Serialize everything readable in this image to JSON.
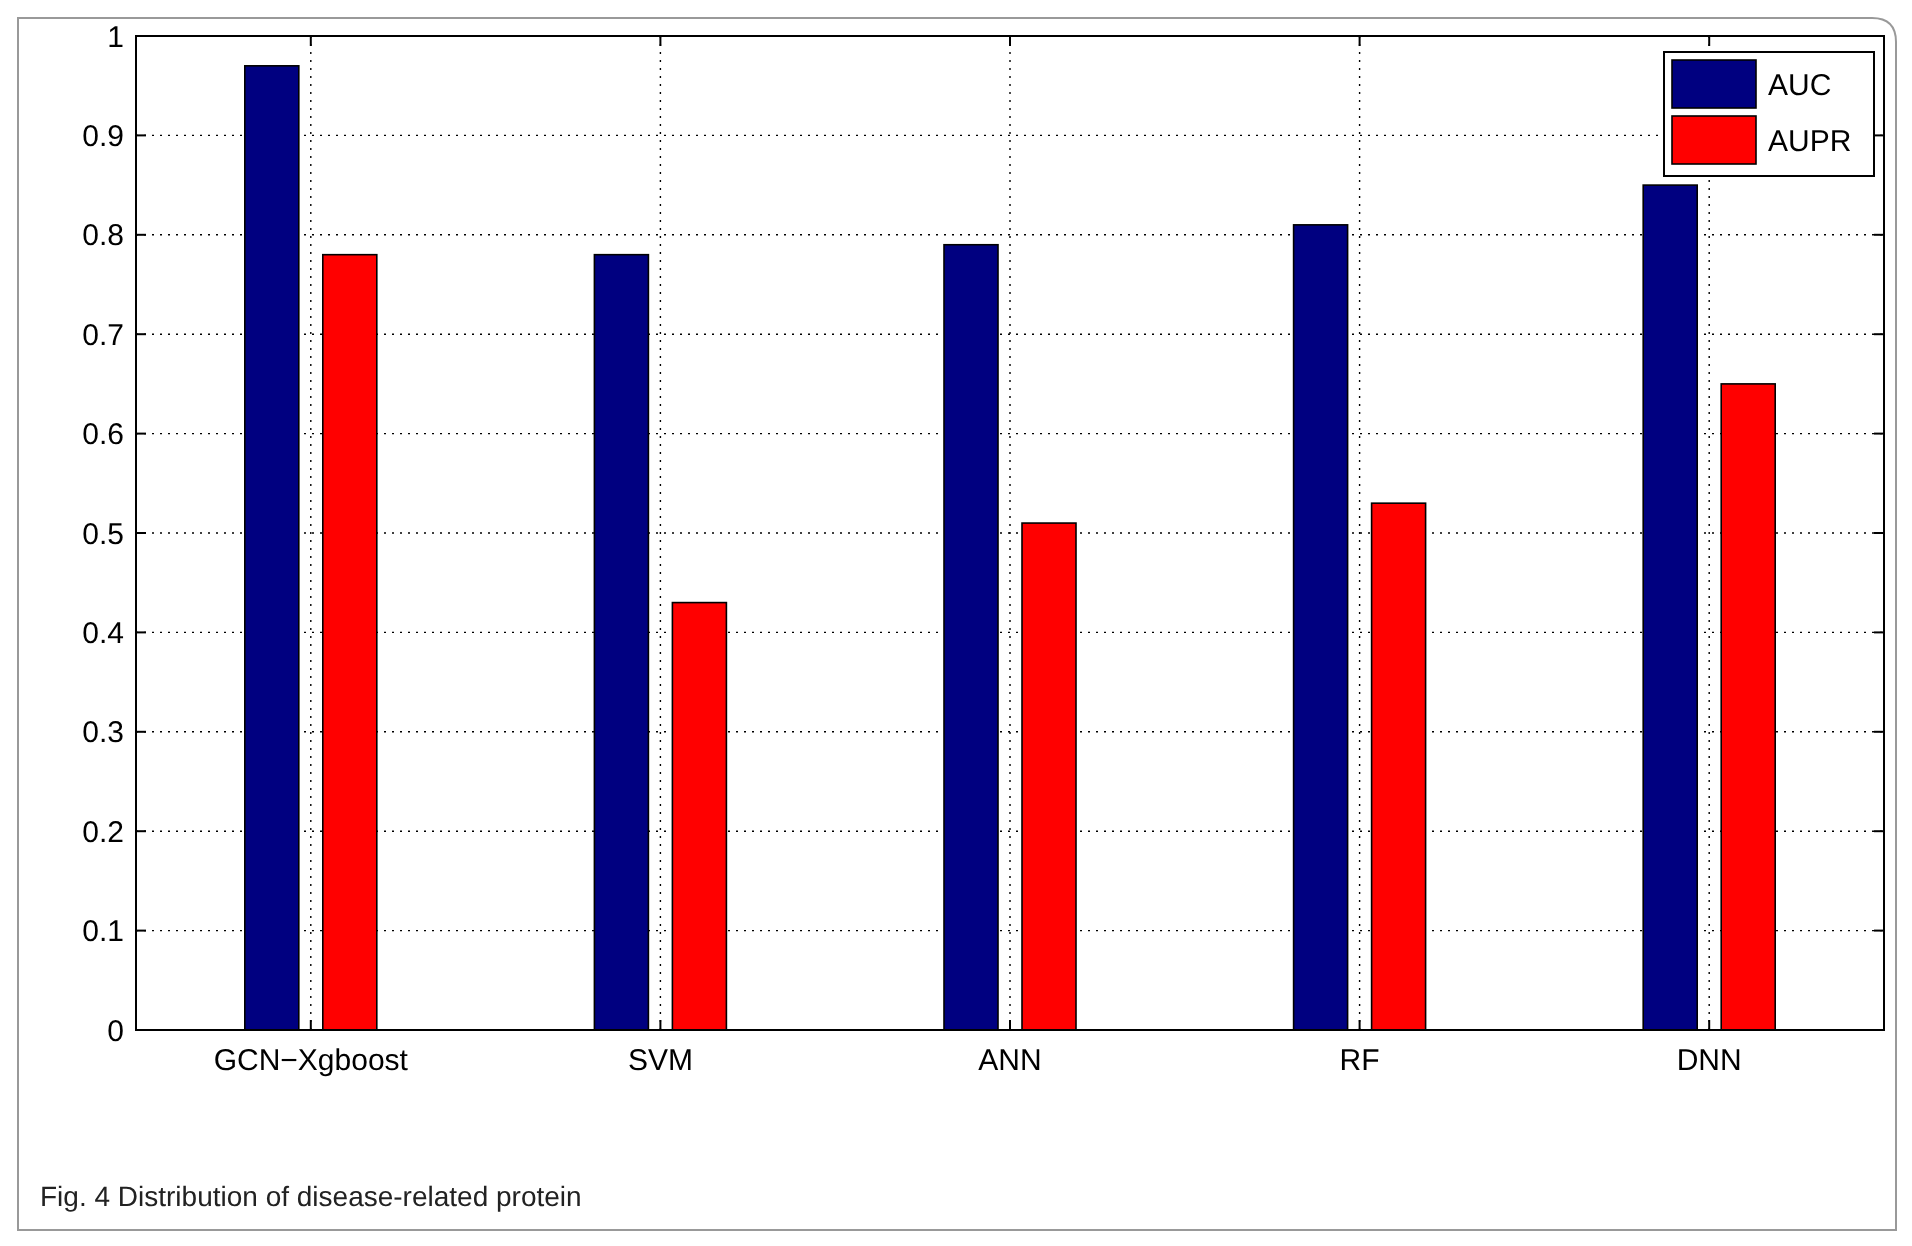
{
  "chart_data": {
    "type": "bar",
    "categories": [
      "GCN−Xgboost",
      "SVM",
      "ANN",
      "RF",
      "DNN"
    ],
    "series": [
      {
        "name": "AUC",
        "color": "#000080",
        "values": [
          0.97,
          0.78,
          0.79,
          0.81,
          0.85
        ]
      },
      {
        "name": "AUPR",
        "color": "#ff0000",
        "values": [
          0.78,
          0.43,
          0.51,
          0.53,
          0.65
        ]
      }
    ],
    "ylim": [
      0,
      1
    ],
    "yticks": [
      0,
      0.1,
      0.2,
      0.3,
      0.4,
      0.5,
      0.6,
      0.7,
      0.8,
      0.9,
      1
    ],
    "grid": true,
    "legend": "top right",
    "annotations": [
      "Fig. 4  Distribution of disease-related protein"
    ]
  }
}
